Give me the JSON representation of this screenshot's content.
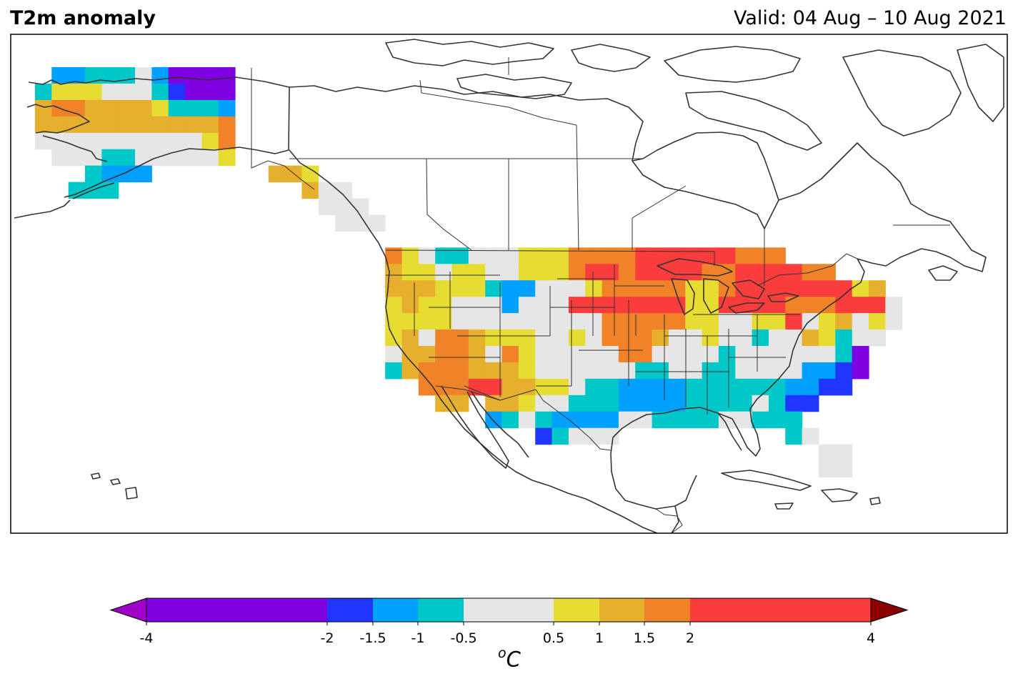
{
  "title": "T2m anomaly",
  "valid": "Valid: 04 Aug – 10 Aug 2021",
  "units": {
    "superscript": "o",
    "base": "C"
  },
  "colorbar": {
    "ticks": [
      "-4",
      "-2",
      "-1.5",
      "-1",
      "-0.5",
      "0.5",
      "1",
      "1.5",
      "2",
      "4"
    ],
    "bins": [
      {
        "from": -4,
        "to": -2,
        "color": "#7f00e0"
      },
      {
        "from": -2,
        "to": -1.5,
        "color": "#2036ff"
      },
      {
        "from": -1.5,
        "to": -1,
        "color": "#00a0ff"
      },
      {
        "from": -1,
        "to": -0.5,
        "color": "#00c8c8"
      },
      {
        "from": -0.5,
        "to": 0.5,
        "color": "#e6e6e6"
      },
      {
        "from": 0.5,
        "to": 1,
        "color": "#e6dc32"
      },
      {
        "from": 1,
        "to": 1.5,
        "color": "#e6af2d"
      },
      {
        "from": 1.5,
        "to": 2,
        "color": "#f08228"
      },
      {
        "from": 2,
        "to": 4,
        "color": "#fa3c3c"
      }
    ],
    "extend_low_color": "#a000c8",
    "extend_high_color": "#8c0000"
  },
  "legend_categories": {
    "P": {
      "range": "-4 to -2",
      "color": "#7f00e0"
    },
    "B": {
      "range": "-2 to -1.5",
      "color": "#2036ff"
    },
    "L": {
      "range": "-1.5 to -1",
      "color": "#00a0ff"
    },
    "C": {
      "range": "-1 to -0.5",
      "color": "#00c8c8"
    },
    "G": {
      "range": "-0.5 to 0.5",
      "color": "#e6e6e6"
    },
    "Y": {
      "range": "0.5 to 1",
      "color": "#e6dc32"
    },
    "M": {
      "range": "1 to 1.5",
      "color": "#e6af2d"
    },
    "O": {
      "range": "1.5 to 2",
      "color": "#f08228"
    },
    "R": {
      "range": "2 to 4",
      "color": "#fa3c3c"
    }
  },
  "anomaly_grid": {
    "grid_step_deg": 2.0,
    "regions": [
      {
        "name": "Alaska",
        "lon0": -168,
        "lat0": 72,
        "rows": [
          ".LLCCCGLPPPP",
          "CYYYGGGCBPPP",
          "MOOMMMMYCCCL",
          "MMMMMMMMMMMO",
          "GGGGGGGGGGYO",
          ".GGGCCGGGGGY",
          "...CLLL.....",
          "..CCC......."
        ]
      },
      {
        "name": "Southeast Alaska",
        "lon0": -140,
        "lat0": 60,
        "rows": [
          "MMY..",
          "..MGG",
          "...GGG",
          "....GGG"
        ]
      },
      {
        "name": "Contiguous United States",
        "lon0": -126,
        "lat0": 50,
        "rows": [
          "OYGCCGGGYYYOOOORRRRRROOO.......",
          "MYYGYYGGYYYORRORRRROORRRROO....",
          "MMMYYYCLLGGGYOOOOOYYORRRRRRRYM.",
          "YMYYGGGLGGGRRRRRRRYYRRRROOORRRG",
          "YYYYGGGGGGGGGOOOOOYYGGYYRGYMGYG",
          "YMGOOMYYYGGYGOOOMGGYGGCGGMYCGG.",
          "GMMOOMGOYGGGGGOOGGGGCGGGGGGCP..",
          "CMOOOMMMYGGGGGGCCGGCCGGGGLLBP..",
          "..OOORRMMYYGCCLLLLCCCCCCLLBB...",
          "...MM.MMYGGCCCLLLLCCCCGCBB.....",
          "......LCGCLLLLGGCCCCGGCCC......",
          ".........BCGGG..........CG.....",
          "..........................GG...",
          "..........................GG..."
        ]
      }
    ]
  }
}
